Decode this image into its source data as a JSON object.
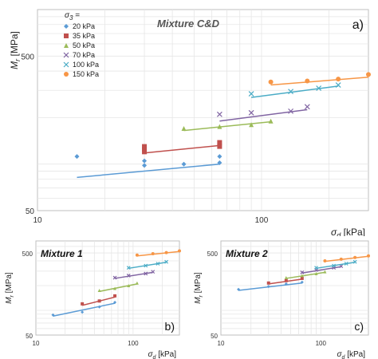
{
  "chart_data": [
    {
      "type": "scatter",
      "panel_label": "a)",
      "title": "Mixture C&D",
      "xlabel_symbol": "σ",
      "xlabel_sub": "d",
      "xlabel_unit": "[kPa]",
      "ylabel_symbol": "M",
      "ylabel_sub": "r",
      "ylabel_unit": "[MPa]",
      "x_scale": "log",
      "y_scale": "log",
      "xlim": [
        10,
        300
      ],
      "ylim": [
        50,
        1000
      ],
      "x_ticks": [
        10,
        100
      ],
      "y_ticks": [
        50,
        500
      ],
      "grid": true,
      "legend_title_symbol": "σ",
      "legend_title_sub": "3",
      "legend_title_suffix": " =",
      "legend_position": "top-left",
      "series": [
        {
          "name": "20 kPa",
          "color": "#5b9bd5",
          "marker": "diamond",
          "x": [
            15,
            30,
            30,
            45,
            65,
            65
          ],
          "y": [
            112,
            105,
            98,
            100,
            102,
            112
          ],
          "fit_x": [
            15,
            65
          ],
          "fit_y": [
            82,
            100
          ]
        },
        {
          "name": "35 kPa",
          "color": "#c0504d",
          "marker": "square",
          "x": [
            30,
            30,
            30,
            65,
            65
          ],
          "y": [
            120,
            125,
            130,
            130,
            138
          ],
          "fit_x": [
            30,
            65
          ],
          "fit_y": [
            118,
            132
          ]
        },
        {
          "name": "50 kPa",
          "color": "#9bbb59",
          "marker": "triangle",
          "x": [
            45,
            65,
            90,
            110
          ],
          "y": [
            170,
            175,
            180,
            190
          ],
          "fit_x": [
            45,
            110
          ],
          "fit_y": [
            165,
            188
          ]
        },
        {
          "name": "70 kPa",
          "color": "#8064a2",
          "marker": "x",
          "x": [
            65,
            90,
            135,
            160
          ],
          "y": [
            210,
            215,
            220,
            235
          ],
          "fit_x": [
            65,
            160
          ],
          "fit_y": [
            190,
            225
          ]
        },
        {
          "name": "100 kPa",
          "color": "#4bacc6",
          "marker": "x",
          "x": [
            90,
            135,
            180,
            220
          ],
          "y": [
            285,
            295,
            310,
            325
          ],
          "fit_x": [
            90,
            220
          ],
          "fit_y": [
            270,
            320
          ]
        },
        {
          "name": "150 kPa",
          "color": "#f79646",
          "marker": "circle",
          "x": [
            110,
            160,
            220,
            300
          ],
          "y": [
            340,
            345,
            355,
            380
          ],
          "fit_x": [
            110,
            300
          ],
          "fit_y": [
            325,
            365
          ]
        }
      ]
    },
    {
      "type": "scatter",
      "panel_label": "b)",
      "title": "Mixture 1",
      "xlabel_symbol": "σ",
      "xlabel_sub": "d",
      "xlabel_unit": "[kPa]",
      "ylabel_symbol": "M",
      "ylabel_sub": "r",
      "ylabel_unit": "[MPa]",
      "x_scale": "log",
      "y_scale": "log",
      "xlim": [
        10,
        300
      ],
      "ylim": [
        50,
        700
      ],
      "x_ticks": [
        10,
        100
      ],
      "y_ticks": [
        50,
        500
      ],
      "grid": true,
      "series": [
        {
          "name": "20 kPa",
          "color": "#5b9bd5",
          "marker": "diamond",
          "x": [
            15,
            30,
            45,
            65
          ],
          "y": [
            88,
            95,
            110,
            125
          ],
          "fit_x": [
            15,
            65
          ],
          "fit_y": [
            85,
            122
          ]
        },
        {
          "name": "35 kPa",
          "color": "#c0504d",
          "marker": "square",
          "x": [
            30,
            45,
            65
          ],
          "y": [
            120,
            130,
            150
          ],
          "fit_x": [
            30,
            65
          ],
          "fit_y": [
            115,
            145
          ]
        },
        {
          "name": "50 kPa",
          "color": "#9bbb59",
          "marker": "triangle",
          "x": [
            45,
            65,
            90,
            110
          ],
          "y": [
            175,
            185,
            200,
            215
          ],
          "fit_x": [
            45,
            110
          ],
          "fit_y": [
            170,
            210
          ]
        },
        {
          "name": "70 kPa",
          "color": "#8064a2",
          "marker": "x",
          "x": [
            65,
            90,
            135,
            160
          ],
          "y": [
            250,
            265,
            280,
            295
          ],
          "fit_x": [
            65,
            160
          ],
          "fit_y": [
            245,
            290
          ]
        },
        {
          "name": "100 kPa",
          "color": "#4bacc6",
          "marker": "x",
          "x": [
            90,
            135,
            180,
            220
          ],
          "y": [
            330,
            350,
            370,
            390
          ],
          "fit_x": [
            90,
            220
          ],
          "fit_y": [
            325,
            385
          ]
        },
        {
          "name": "150 kPa",
          "color": "#f79646",
          "marker": "circle",
          "x": [
            110,
            160,
            220,
            300
          ],
          "y": [
            470,
            490,
            505,
            530
          ],
          "fit_x": [
            110,
            300
          ],
          "fit_y": [
            460,
            520
          ]
        }
      ]
    },
    {
      "type": "scatter",
      "panel_label": "c)",
      "title": "Mixture 2",
      "xlabel_symbol": "σ",
      "xlabel_sub": "d",
      "xlabel_unit": "[kPa]",
      "ylabel_symbol": "M",
      "ylabel_sub": "r",
      "ylabel_unit": "[MPa]",
      "x_scale": "log",
      "y_scale": "log",
      "xlim": [
        10,
        300
      ],
      "ylim": [
        50,
        700
      ],
      "x_ticks": [
        10,
        100
      ],
      "y_ticks": [
        50,
        500
      ],
      "grid": true,
      "series": [
        {
          "name": "20 kPa",
          "color": "#5b9bd5",
          "marker": "diamond",
          "x": [
            15,
            30,
            45,
            65
          ],
          "y": [
            180,
            195,
            210,
            220
          ],
          "fit_x": [
            15,
            65
          ],
          "fit_y": [
            175,
            215
          ]
        },
        {
          "name": "35 kPa",
          "color": "#c0504d",
          "marker": "square",
          "x": [
            30,
            45,
            65
          ],
          "y": [
            215,
            230,
            245
          ],
          "fit_x": [
            30,
            65
          ],
          "fit_y": [
            210,
            240
          ]
        },
        {
          "name": "50 kPa",
          "color": "#9bbb59",
          "marker": "triangle",
          "x": [
            45,
            65,
            90,
            110
          ],
          "y": [
            250,
            265,
            280,
            295
          ],
          "fit_x": [
            45,
            110
          ],
          "fit_y": [
            245,
            290
          ]
        },
        {
          "name": "70 kPa",
          "color": "#8064a2",
          "marker": "x",
          "x": [
            65,
            90,
            135,
            160
          ],
          "y": [
            290,
            310,
            330,
            345
          ],
          "fit_x": [
            65,
            160
          ],
          "fit_y": [
            285,
            340
          ]
        },
        {
          "name": "100 kPa",
          "color": "#4bacc6",
          "marker": "x",
          "x": [
            90,
            135,
            180,
            220
          ],
          "y": [
            330,
            350,
            370,
            390
          ],
          "fit_x": [
            90,
            220
          ],
          "fit_y": [
            325,
            385
          ]
        },
        {
          "name": "150 kPa",
          "color": "#f79646",
          "marker": "circle",
          "x": [
            110,
            160,
            220,
            300
          ],
          "y": [
            400,
            420,
            440,
            460
          ],
          "fit_x": [
            110,
            300
          ],
          "fit_y": [
            395,
            455
          ]
        }
      ]
    }
  ]
}
